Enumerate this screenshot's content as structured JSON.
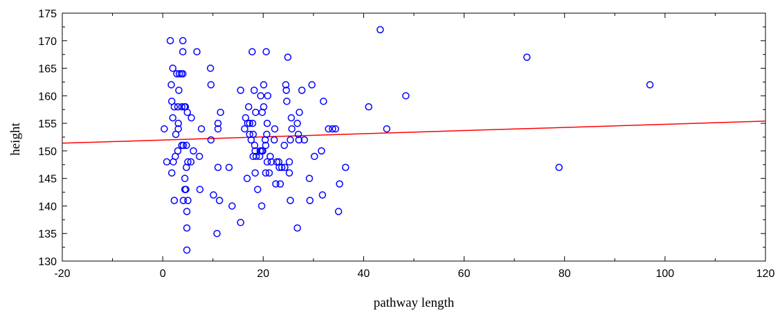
{
  "chart_data": {
    "type": "scatter",
    "title": "",
    "xlabel": "pathway length",
    "ylabel": "height",
    "xlim": [
      -20,
      120
    ],
    "ylim": [
      130,
      175
    ],
    "xticks": [
      -20,
      0,
      20,
      40,
      60,
      80,
      100,
      120
    ],
    "yticks": [
      130,
      135,
      140,
      145,
      150,
      155,
      160,
      165,
      170,
      175
    ],
    "grid": false,
    "legend": "none",
    "colors": {
      "points": "#0000ff",
      "fit_line": "#ff0000",
      "axes": "#000000"
    },
    "fit_line": {
      "x": [
        -20,
        120
      ],
      "y": [
        151.4,
        155.4
      ]
    },
    "points": [
      {
        "x": 0.3,
        "y": 154
      },
      {
        "x": 0.8,
        "y": 148
      },
      {
        "x": 1.5,
        "y": 170
      },
      {
        "x": 1.7,
        "y": 162
      },
      {
        "x": 1.8,
        "y": 159
      },
      {
        "x": 1.8,
        "y": 146
      },
      {
        "x": 2.0,
        "y": 165
      },
      {
        "x": 2.0,
        "y": 156
      },
      {
        "x": 2.1,
        "y": 148
      },
      {
        "x": 2.3,
        "y": 158
      },
      {
        "x": 2.3,
        "y": 141
      },
      {
        "x": 2.5,
        "y": 149
      },
      {
        "x": 2.6,
        "y": 153
      },
      {
        "x": 2.8,
        "y": 164
      },
      {
        "x": 3.0,
        "y": 158
      },
      {
        "x": 3.0,
        "y": 150
      },
      {
        "x": 3.1,
        "y": 155
      },
      {
        "x": 3.1,
        "y": 154
      },
      {
        "x": 3.2,
        "y": 161
      },
      {
        "x": 3.3,
        "y": 164
      },
      {
        "x": 3.7,
        "y": 164
      },
      {
        "x": 3.8,
        "y": 158
      },
      {
        "x": 3.8,
        "y": 151
      },
      {
        "x": 4.0,
        "y": 170
      },
      {
        "x": 4.0,
        "y": 168
      },
      {
        "x": 4.0,
        "y": 164
      },
      {
        "x": 4.1,
        "y": 151
      },
      {
        "x": 4.1,
        "y": 141
      },
      {
        "x": 4.3,
        "y": 158
      },
      {
        "x": 4.4,
        "y": 145
      },
      {
        "x": 4.4,
        "y": 143
      },
      {
        "x": 4.5,
        "y": 158
      },
      {
        "x": 4.6,
        "y": 143
      },
      {
        "x": 4.7,
        "y": 151
      },
      {
        "x": 4.7,
        "y": 147
      },
      {
        "x": 4.8,
        "y": 139
      },
      {
        "x": 4.8,
        "y": 136
      },
      {
        "x": 4.8,
        "y": 132
      },
      {
        "x": 4.9,
        "y": 157
      },
      {
        "x": 5.0,
        "y": 148
      },
      {
        "x": 5.0,
        "y": 141
      },
      {
        "x": 5.6,
        "y": 148
      },
      {
        "x": 5.7,
        "y": 156
      },
      {
        "x": 6.1,
        "y": 150
      },
      {
        "x": 6.8,
        "y": 168
      },
      {
        "x": 7.3,
        "y": 149
      },
      {
        "x": 7.4,
        "y": 143
      },
      {
        "x": 7.7,
        "y": 154
      },
      {
        "x": 9.5,
        "y": 165
      },
      {
        "x": 9.6,
        "y": 162
      },
      {
        "x": 9.6,
        "y": 152
      },
      {
        "x": 10.1,
        "y": 142
      },
      {
        "x": 10.8,
        "y": 135
      },
      {
        "x": 11.0,
        "y": 155
      },
      {
        "x": 11.0,
        "y": 154
      },
      {
        "x": 11.0,
        "y": 147
      },
      {
        "x": 11.3,
        "y": 141
      },
      {
        "x": 11.5,
        "y": 157
      },
      {
        "x": 13.2,
        "y": 147
      },
      {
        "x": 13.8,
        "y": 140
      },
      {
        "x": 15.5,
        "y": 161
      },
      {
        "x": 15.5,
        "y": 137
      },
      {
        "x": 16.3,
        "y": 154
      },
      {
        "x": 16.5,
        "y": 156
      },
      {
        "x": 16.8,
        "y": 145
      },
      {
        "x": 16.9,
        "y": 155
      },
      {
        "x": 17.1,
        "y": 158
      },
      {
        "x": 17.3,
        "y": 155
      },
      {
        "x": 17.3,
        "y": 153
      },
      {
        "x": 17.6,
        "y": 152
      },
      {
        "x": 17.8,
        "y": 168
      },
      {
        "x": 17.9,
        "y": 155
      },
      {
        "x": 18.0,
        "y": 153
      },
      {
        "x": 18.0,
        "y": 149
      },
      {
        "x": 18.2,
        "y": 161
      },
      {
        "x": 18.3,
        "y": 151
      },
      {
        "x": 18.4,
        "y": 150
      },
      {
        "x": 18.4,
        "y": 146
      },
      {
        "x": 18.5,
        "y": 157
      },
      {
        "x": 18.6,
        "y": 149
      },
      {
        "x": 18.9,
        "y": 143
      },
      {
        "x": 19.3,
        "y": 149
      },
      {
        "x": 19.4,
        "y": 150
      },
      {
        "x": 19.5,
        "y": 160
      },
      {
        "x": 19.7,
        "y": 150
      },
      {
        "x": 19.7,
        "y": 140
      },
      {
        "x": 19.8,
        "y": 157
      },
      {
        "x": 19.9,
        "y": 150
      },
      {
        "x": 20.1,
        "y": 158
      },
      {
        "x": 20.1,
        "y": 162
      },
      {
        "x": 20.4,
        "y": 152
      },
      {
        "x": 20.5,
        "y": 151
      },
      {
        "x": 20.5,
        "y": 146
      },
      {
        "x": 20.6,
        "y": 168
      },
      {
        "x": 20.7,
        "y": 153
      },
      {
        "x": 20.8,
        "y": 155
      },
      {
        "x": 20.8,
        "y": 148
      },
      {
        "x": 20.9,
        "y": 160
      },
      {
        "x": 21.2,
        "y": 146
      },
      {
        "x": 21.4,
        "y": 149
      },
      {
        "x": 21.6,
        "y": 148
      },
      {
        "x": 22.2,
        "y": 152
      },
      {
        "x": 22.3,
        "y": 154
      },
      {
        "x": 22.5,
        "y": 144
      },
      {
        "x": 22.7,
        "y": 148
      },
      {
        "x": 23.1,
        "y": 148
      },
      {
        "x": 23.2,
        "y": 147
      },
      {
        "x": 23.4,
        "y": 144
      },
      {
        "x": 23.7,
        "y": 147
      },
      {
        "x": 24.2,
        "y": 151
      },
      {
        "x": 24.3,
        "y": 147
      },
      {
        "x": 24.5,
        "y": 162
      },
      {
        "x": 24.6,
        "y": 161
      },
      {
        "x": 24.7,
        "y": 159
      },
      {
        "x": 24.9,
        "y": 167
      },
      {
        "x": 25.2,
        "y": 148
      },
      {
        "x": 25.2,
        "y": 146
      },
      {
        "x": 25.4,
        "y": 152
      },
      {
        "x": 25.4,
        "y": 141
      },
      {
        "x": 25.6,
        "y": 156
      },
      {
        "x": 25.7,
        "y": 154
      },
      {
        "x": 26.8,
        "y": 155
      },
      {
        "x": 26.8,
        "y": 136
      },
      {
        "x": 27.0,
        "y": 153
      },
      {
        "x": 27.1,
        "y": 152
      },
      {
        "x": 27.2,
        "y": 157
      },
      {
        "x": 27.7,
        "y": 161
      },
      {
        "x": 28.2,
        "y": 152
      },
      {
        "x": 29.2,
        "y": 145
      },
      {
        "x": 29.3,
        "y": 141
      },
      {
        "x": 29.7,
        "y": 162
      },
      {
        "x": 30.2,
        "y": 149
      },
      {
        "x": 31.6,
        "y": 150
      },
      {
        "x": 31.8,
        "y": 142
      },
      {
        "x": 32.0,
        "y": 159
      },
      {
        "x": 33.0,
        "y": 154
      },
      {
        "x": 33.8,
        "y": 154
      },
      {
        "x": 34.4,
        "y": 154
      },
      {
        "x": 35.0,
        "y": 139
      },
      {
        "x": 35.2,
        "y": 144
      },
      {
        "x": 36.4,
        "y": 147
      },
      {
        "x": 41.0,
        "y": 158
      },
      {
        "x": 43.3,
        "y": 172
      },
      {
        "x": 44.6,
        "y": 154
      },
      {
        "x": 48.4,
        "y": 160
      },
      {
        "x": 72.5,
        "y": 167
      },
      {
        "x": 78.9,
        "y": 147
      },
      {
        "x": 97.0,
        "y": 162
      }
    ]
  }
}
